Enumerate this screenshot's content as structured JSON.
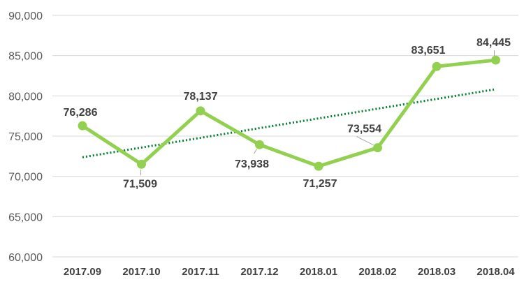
{
  "chart_data": {
    "type": "line",
    "title": "",
    "xlabel": "",
    "ylabel": "",
    "categories": [
      "2017.09",
      "2017.10",
      "2017.11",
      "2017.12",
      "2018.01",
      "2018.02",
      "2018.03",
      "2018.04"
    ],
    "series": [
      {
        "values": [
          76286,
          71509,
          78137,
          73938,
          71257,
          73554,
          83651,
          84445
        ],
        "labels": [
          "76,286",
          "71,509",
          "78,137",
          "73,938",
          "71,257",
          "73,554",
          "83,651",
          "84,445"
        ],
        "color": "#92d050"
      }
    ],
    "trendline": {
      "type": "linear",
      "style": "dotted",
      "color": "#00802b"
    },
    "ylim": [
      60000,
      90000
    ],
    "y_ticks": [
      60000,
      65000,
      70000,
      75000,
      80000,
      85000,
      90000
    ],
    "y_tick_labels": [
      "60,000",
      "65,000",
      "70,000",
      "75,000",
      "80,000",
      "85,000",
      "90,000"
    ],
    "grid": true,
    "legend": "none"
  }
}
